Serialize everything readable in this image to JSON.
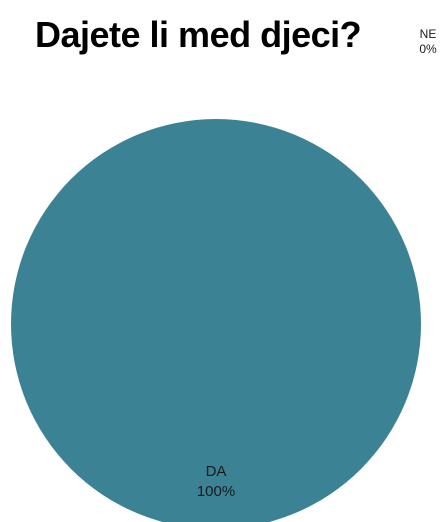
{
  "chart_data": {
    "type": "pie",
    "title": "Dajete li med djeci?",
    "categories": [
      "DA",
      "NE"
    ],
    "values": [
      100,
      0
    ],
    "labels": [
      {
        "category": "DA",
        "percent": "100%"
      },
      {
        "category": "NE",
        "percent": "0%"
      }
    ],
    "colors": {
      "DA": "#3b8294",
      "NE": "#c0504d"
    },
    "legend": "none"
  }
}
